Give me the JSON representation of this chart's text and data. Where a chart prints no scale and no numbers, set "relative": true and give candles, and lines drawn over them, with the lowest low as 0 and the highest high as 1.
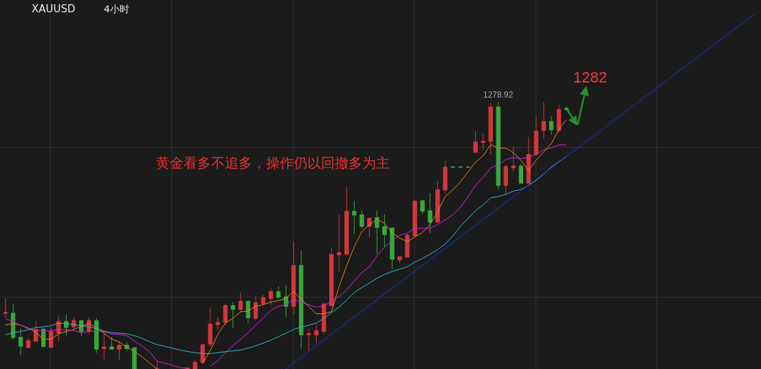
{
  "chart_data": {
    "type": "candlestick",
    "title": "XAUUSD",
    "subtitle": "4小时",
    "relative": true,
    "grid": true,
    "categories": [
      null,
      null,
      null,
      null,
      null,
      null,
      null,
      null,
      null,
      null,
      null,
      null,
      null,
      null,
      null,
      null,
      null,
      null,
      null,
      null,
      null,
      null,
      null,
      null,
      null,
      null,
      null,
      null,
      null,
      null,
      null,
      null,
      null,
      null,
      null,
      null,
      null,
      null,
      null,
      null,
      null,
      null,
      null,
      null,
      null,
      null,
      null,
      null,
      null,
      null,
      null,
      null,
      null,
      null,
      null,
      null,
      null,
      null,
      null,
      null,
      null,
      null,
      null,
      null,
      null,
      null,
      null,
      null,
      null,
      null,
      null,
      null,
      null,
      null,
      null,
      null,
      null,
      null,
      null,
      null,
      null,
      null,
      null,
      null,
      null,
      null,
      null,
      null,
      null,
      null,
      null,
      null,
      null,
      null,
      null,
      null,
      null,
      null,
      null,
      null
    ],
    "ohlc": [
      [
        0.208,
        0.265,
        0.19,
        0.212
      ],
      [
        0.209,
        0.244,
        0.11,
        0.118
      ],
      [
        0.119,
        0.152,
        0.052,
        0.085
      ],
      [
        0.08,
        0.115,
        0.078,
        0.106
      ],
      [
        0.104,
        0.179,
        0.103,
        0.147
      ],
      [
        0.149,
        0.153,
        0.081,
        0.084
      ],
      [
        0.081,
        0.155,
        0.078,
        0.141
      ],
      [
        0.134,
        0.196,
        0.104,
        0.178
      ],
      [
        0.178,
        0.205,
        0.124,
        0.155
      ],
      [
        0.157,
        0.193,
        0.149,
        0.181
      ],
      [
        0.181,
        0.183,
        0.124,
        0.141
      ],
      [
        0.141,
        0.193,
        0.131,
        0.181
      ],
      [
        0.181,
        0.19,
        0.061,
        0.074
      ],
      [
        0.076,
        0.138,
        0.031,
        0.083
      ],
      [
        0.083,
        0.121,
        0.073,
        0.074
      ],
      [
        0.074,
        0.104,
        0.033,
        0.089
      ],
      [
        0.089,
        0.101,
        0.068,
        0.076
      ],
      [
        0.08,
        0.08,
        0,
        0
      ],
      null,
      null,
      [
        0,
        0.033,
        0,
        0
      ],
      null,
      null,
      null,
      [
        0,
        0.005,
        0,
        0.004
      ],
      [
        0,
        0.033,
        0,
        0.025
      ],
      [
        0.025,
        0.095,
        0.018,
        0.091
      ],
      [
        0.093,
        0.228,
        0.084,
        0.168
      ],
      [
        0.166,
        0.194,
        0.148,
        0.175
      ],
      [
        0.175,
        0.245,
        0.164,
        0.238
      ],
      [
        0.238,
        0.25,
        0.154,
        0.223
      ],
      [
        0.223,
        0.286,
        0.213,
        0.254
      ],
      [
        0.254,
        0.256,
        0.172,
        0.192
      ],
      [
        0.19,
        0.272,
        0.183,
        0.248
      ],
      [
        0.245,
        0.278,
        0.238,
        0.267
      ],
      [
        0.264,
        0.304,
        0.241,
        0.29
      ],
      [
        0.29,
        0.309,
        0.261,
        0.269
      ],
      [
        0.271,
        0.312,
        0.196,
        0.234
      ],
      [
        0.234,
        0.477,
        0.207,
        0.388
      ],
      [
        0.388,
        0.443,
        0.076,
        0.128
      ],
      [
        0.128,
        0.153,
        0.069,
        0.133
      ],
      [
        0.128,
        0.168,
        0.095,
        0.144
      ],
      [
        0.141,
        0.245,
        0.132,
        0.244
      ],
      [
        0.237,
        0.454,
        0.235,
        0.429
      ],
      [
        0.427,
        0.578,
        0.365,
        0.436
      ],
      [
        0.43,
        0.682,
        0.423,
        0.591
      ],
      [
        0.591,
        0.629,
        0.505,
        0.576
      ],
      [
        0.578,
        0.594,
        0.526,
        0.534
      ],
      [
        0.534,
        0.567,
        0.494,
        0.565
      ],
      [
        0.567,
        0.594,
        0.43,
        0.53
      ],
      [
        0.533,
        0.579,
        0.455,
        0.503
      ],
      [
        0.528,
        0.528,
        0.374,
        0.411
      ],
      [
        0.408,
        0.423,
        0.397,
        0.421
      ],
      [
        0.419,
        0.509,
        0.417,
        0.501
      ],
      [
        0.498,
        0.631,
        0.497,
        0.629
      ],
      [
        0.63,
        0.634,
        0.58,
        0.591
      ],
      [
        0.593,
        0.659,
        0.509,
        0.55
      ],
      [
        0.55,
        0.704,
        0.549,
        0.672
      ],
      [
        0.67,
        0.779,
        0.654,
        0.756
      ],
      [
        0.756,
        0.756,
        0.756,
        0.756
      ],
      [
        0.756,
        0.756,
        0.756,
        0.756
      ],
      [
        0.756,
        0.756,
        0.756,
        0.756
      ],
      [
        0.811,
        0.893,
        0.81,
        0.85
      ],
      [
        0.848,
        0.882,
        0.82,
        0.853
      ],
      [
        0.852,
        0.996,
        0.803,
        0.981
      ],
      [
        0.981,
        1.0,
        0.672,
        0.687
      ],
      [
        0.687,
        0.764,
        0.651,
        0.758
      ],
      [
        0.753,
        0.833,
        0.738,
        0.76
      ],
      [
        0.76,
        0.769,
        0.695,
        0.695
      ],
      [
        0.695,
        0.869,
        0.695,
        0.804
      ],
      [
        0.803,
        0.944,
        0.8,
        0.891
      ],
      [
        0.893,
        0.998,
        0.861,
        0.927
      ],
      [
        0.927,
        0.947,
        0.877,
        0.895
      ],
      [
        0.893,
        0.989,
        0.885,
        0.972
      ],
      [
        0.976,
        0.985,
        0.967,
        0.972
      ],
      null,
      null,
      null,
      null,
      null,
      null,
      null,
      null,
      null,
      null,
      null,
      null,
      null,
      null,
      null,
      null,
      null,
      null,
      null,
      null,
      null,
      null,
      null,
      null,
      null
    ],
    "colors": [
      "#d2373c",
      "#38a83c",
      "#38a83c",
      "#d2373c",
      "#d2373c",
      "#38a83c",
      "#d2373c",
      "#d2373c",
      "#38a83c",
      "#d2373c",
      "#38a83c",
      "#d2373c",
      "#38a83c",
      "#d2373c",
      "#38a83c",
      "#d2373c",
      "#38a83c",
      "#38a83c",
      null,
      null,
      "#d2373c",
      null,
      null,
      null,
      "#d2373c",
      "#d2373c",
      "#d2373c",
      "#d2373c",
      "#d2373c",
      "#d2373c",
      "#38a83c",
      "#d2373c",
      "#38a83c",
      "#d2373c",
      "#d2373c",
      "#d2373c",
      "#38a83c",
      "#38a83c",
      "#d2373c",
      "#38a83c",
      "#d2373c",
      "#d2373c",
      "#d2373c",
      "#d2373c",
      "#d2373c",
      "#d2373c",
      "#38a83c",
      "#38a83c",
      "#d2373c",
      "#38a83c",
      "#38a83c",
      "#38a83c",
      "#d2373c",
      "#d2373c",
      "#d2373c",
      "#38a83c",
      "#38a83c",
      "#d2373c",
      "#d2373c",
      "#38a83c",
      "#38a83c",
      "#38a83c",
      "#d2373c",
      "#d2373c",
      "#d2373c",
      "#38a83c",
      "#d2373c",
      "#d2373c",
      "#38a83c",
      "#d2373c",
      "#d2373c",
      "#d2373c",
      "#38a83c",
      "#d2373c",
      "#38a83c",
      null,
      null,
      null,
      null,
      null,
      null,
      null,
      null,
      null,
      null,
      null,
      null,
      null,
      null,
      null,
      null,
      null,
      null,
      null,
      null,
      null,
      null,
      null,
      null,
      null
    ],
    "series": [
      {
        "type": "line",
        "color": "#f08214",
        "values": [
          0.165,
          0.17,
          0.164,
          0.153,
          0.138,
          0.111,
          0.112,
          0.131,
          0.141,
          0.148,
          0.16,
          0.17,
          0.155,
          0.134,
          0.112,
          0.101,
          0.082,
          0.065,
          0.046,
          0.022,
          0,
          null,
          null,
          null,
          null,
          null,
          0.021,
          0.069,
          0.129,
          0.172,
          0.19,
          0.214,
          0.217,
          0.235,
          0.241,
          0.251,
          0.256,
          0.264,
          0.291,
          0.261,
          0.234,
          0.207,
          0.207,
          0.215,
          0.309,
          0.387,
          0.457,
          0.515,
          0.54,
          0.561,
          0.545,
          0.511,
          0.49,
          0.477,
          0.494,
          0.511,
          0.541,
          0.588,
          0.646,
          0.67,
          0.7,
          0.738,
          0.774,
          0.798,
          0.84,
          0.827,
          0.827,
          0.81,
          0.781,
          0.743,
          0.782,
          0.813,
          0.844,
          0.897,
          0.934,
          null,
          null,
          null,
          null,
          null,
          null,
          null,
          null,
          null,
          null,
          null,
          null,
          null,
          null,
          null,
          null,
          null,
          null,
          null,
          null,
          null,
          null,
          null,
          null,
          null
        ]
      },
      {
        "type": "line",
        "color": "#dc1edc",
        "values": [
          0.188,
          0.177,
          0.164,
          0.151,
          0.147,
          0.142,
          0.144,
          0.147,
          0.147,
          0.144,
          0.136,
          0.141,
          0.141,
          0.14,
          0.131,
          0.129,
          0.125,
          0.104,
          0.087,
          0.064,
          0.029,
          0.022,
          0.014,
          0.005,
          0.003,
          null,
          null,
          0.011,
          0.031,
          0.061,
          0.087,
          0.111,
          0.136,
          0.164,
          0.192,
          0.219,
          0.235,
          0.241,
          0.261,
          0.25,
          0.241,
          0.231,
          0.237,
          0.254,
          0.271,
          0.297,
          0.329,
          0.361,
          0.383,
          0.424,
          0.457,
          0.481,
          0.501,
          0.509,
          0.527,
          0.527,
          0.527,
          0.541,
          0.558,
          0.577,
          0.605,
          0.644,
          0.687,
          0.717,
          0.753,
          0.764,
          0.784,
          0.792,
          0.788,
          0.792,
          0.804,
          0.821,
          0.828,
          0.839,
          0.839,
          null,
          null,
          null,
          null,
          null,
          null,
          null,
          null,
          null,
          null,
          null,
          null,
          null,
          null,
          null,
          null,
          null,
          null,
          null,
          null,
          null,
          null,
          null,
          null,
          null
        ]
      },
      {
        "type": "line",
        "color": "#28bed2",
        "values": [
          0.128,
          0.136,
          0.14,
          0.147,
          0.155,
          0.158,
          0.162,
          0.171,
          0.171,
          0.166,
          0.162,
          0.158,
          0.151,
          0.142,
          0.136,
          0.134,
          0.132,
          0.125,
          0.115,
          0.102,
          0.091,
          0.085,
          0.078,
          0.071,
          0.066,
          0.061,
          0.058,
          0.058,
          0.061,
          0.065,
          0.068,
          0.071,
          0.078,
          0.087,
          0.097,
          0.108,
          0.121,
          0.134,
          0.148,
          0.157,
          0.164,
          0.172,
          0.19,
          0.211,
          0.232,
          0.258,
          0.286,
          0.305,
          0.322,
          0.34,
          0.354,
          0.365,
          0.374,
          0.383,
          0.4,
          0.414,
          0.43,
          0.447,
          0.468,
          0.498,
          0.534,
          0.563,
          0.593,
          0.614,
          0.641,
          0.646,
          0.654,
          0.666,
          0.672,
          0.687,
          0.706,
          0.73,
          0.756,
          0.777,
          0.794,
          null,
          null,
          null,
          null,
          null,
          null,
          null,
          null,
          null,
          null,
          null,
          null,
          null,
          null,
          null,
          null,
          null,
          null,
          null,
          null,
          null,
          null,
          null,
          null,
          null
        ]
      },
      {
        "type": "line",
        "color": "#1432e6",
        "values": [
          null,
          null,
          null,
          null,
          null,
          null,
          null,
          null,
          null,
          null,
          null,
          null,
          null,
          null,
          null,
          null,
          null,
          null,
          null,
          null,
          null,
          null,
          null,
          null,
          null,
          null,
          null,
          null,
          null,
          null,
          null,
          null,
          null,
          null,
          null,
          null,
          null,
          0.001,
          0.023,
          0.044,
          0.066,
          0.087,
          0.109,
          0.13,
          0.152,
          0.173,
          0.195,
          0.216,
          0.238,
          0.259,
          0.281,
          0.302,
          0.324,
          0.345,
          0.367,
          0.388,
          0.409,
          0.431,
          0.452,
          0.474,
          0.495,
          0.517,
          0.538,
          0.56,
          0.581,
          0.603,
          0.624,
          0.646,
          0.667,
          0.689,
          0.71,
          0.732,
          0.753,
          0.775,
          0.796,
          0.817,
          0.839,
          0.86,
          0.882,
          0.903,
          0.925,
          0.946,
          0.968,
          0.989,
          1.011,
          1.032,
          1.054,
          1.075,
          1.097,
          1.118,
          1.14,
          1.161,
          1.183,
          1.204,
          1.226,
          1.247,
          1.269,
          1.29,
          1.312,
          1.333
        ]
      }
    ],
    "annotations": [
      {
        "text": "1278.92",
        "y": 1.0
      },
      "黄金看多不追多，操作仍以回撤多为主",
      "1282"
    ]
  }
}
